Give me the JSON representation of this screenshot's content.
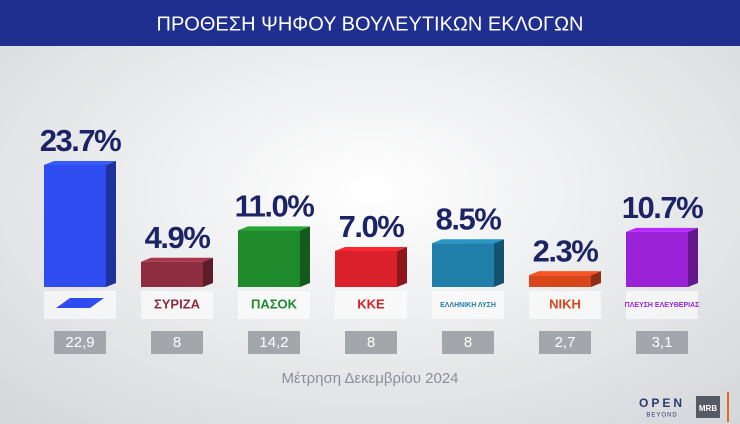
{
  "chart_data": {
    "type": "bar",
    "title": "ΠΡΟΘΕΣΗ ΨΗΦΟΥ ΒΟΥΛΕΥΤΙΚΩΝ ΕΚΛΟΓΩΝ",
    "subtitle": "Μέτρηση Δεκεμβρίου 2024",
    "categories": [
      null,
      "ΣΥΡΙΖΑ",
      "ΠΑΣΟΚ",
      "ΚΚΕ",
      "ΕΛΛΗΝΙΚΗ ΛΥΣΗ",
      "ΝΙΚΗ",
      "ΠΛΕΥΣΗ ΕΛΕΥΘΕΡΙΑΣ"
    ],
    "values": [
      23.7,
      4.9,
      11.0,
      7.0,
      8.5,
      2.3,
      10.7
    ],
    "value_labels": [
      "23.7%",
      "4.9%",
      "11.0%",
      "7.0%",
      "8.5%",
      "2.3%",
      "10.7%"
    ],
    "colors": [
      "#2f4cf0",
      "#8e2c40",
      "#1f8a2c",
      "#d9202b",
      "#1f7fa8",
      "#d8461c",
      "#9a22d6"
    ],
    "comparison": {
      "values": [
        22.9,
        8,
        14.2,
        8,
        8,
        2.7,
        3.1
      ],
      "value_labels": [
        "22,9",
        "8",
        "14,2",
        "8",
        "8",
        "2,7",
        "3,1"
      ]
    },
    "branding": [
      "OPEN",
      "BEYOND",
      "MRB"
    ]
  }
}
